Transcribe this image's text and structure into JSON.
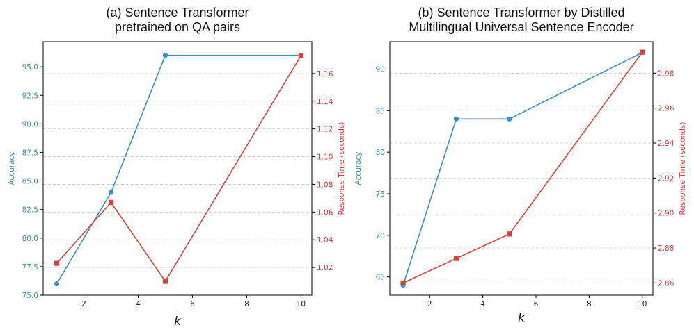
{
  "colors": {
    "accuracy": "#3a8fc8",
    "time": "#d9403a",
    "axis": "#000000",
    "grid": "#cccccc",
    "tick_text": "#222222"
  },
  "chart_data": [
    {
      "type": "line",
      "title": "(a) Sentence Transformer\npretrained on QA pairs",
      "xlabel": "k",
      "ylabel_left": "Accuracy",
      "ylabel_right": "Response Time (seconds)",
      "x": [
        1,
        3,
        5,
        10
      ],
      "xlim": [
        0.5,
        10.4
      ],
      "xticks": [
        2,
        4,
        6,
        8,
        10
      ],
      "series": [
        {
          "axis": "left",
          "marker": "circle",
          "values": [
            76.0,
            84.0,
            96.0,
            96.0
          ]
        },
        {
          "axis": "right",
          "marker": "square",
          "values": [
            1.023,
            1.067,
            1.01,
            1.173
          ]
        }
      ],
      "ylim_left": [
        75.0,
        97.2
      ],
      "yticks_left": [
        75.0,
        77.5,
        80.0,
        82.5,
        85.0,
        87.5,
        90.0,
        92.5,
        95.0
      ],
      "ylim_right": [
        1.0,
        1.183
      ],
      "yticks_right": [
        1.02,
        1.04,
        1.06,
        1.08,
        1.1,
        1.12,
        1.14,
        1.16
      ],
      "grid": true
    },
    {
      "type": "line",
      "title": "(b) Sentence Transformer by Distilled\nMultilingual Universal Sentence Encoder",
      "xlabel": "k",
      "ylabel_left": "Accuracy",
      "ylabel_right": "Response Time (seconds)",
      "x": [
        1,
        3,
        5,
        10
      ],
      "xlim": [
        0.5,
        10.4
      ],
      "xticks": [
        2,
        4,
        6,
        8,
        10
      ],
      "series": [
        {
          "axis": "left",
          "marker": "circle",
          "values": [
            64.0,
            84.0,
            84.0,
            92.0
          ]
        },
        {
          "axis": "right",
          "marker": "square",
          "values": [
            2.86,
            2.874,
            2.888,
            2.992
          ]
        }
      ],
      "ylim_left": [
        62.8,
        93.3
      ],
      "yticks_left": [
        65,
        70,
        75,
        80,
        85,
        90
      ],
      "ylim_right": [
        2.853,
        2.998
      ],
      "yticks_right": [
        2.86,
        2.88,
        2.9,
        2.92,
        2.94,
        2.96,
        2.98
      ],
      "grid": true
    }
  ]
}
